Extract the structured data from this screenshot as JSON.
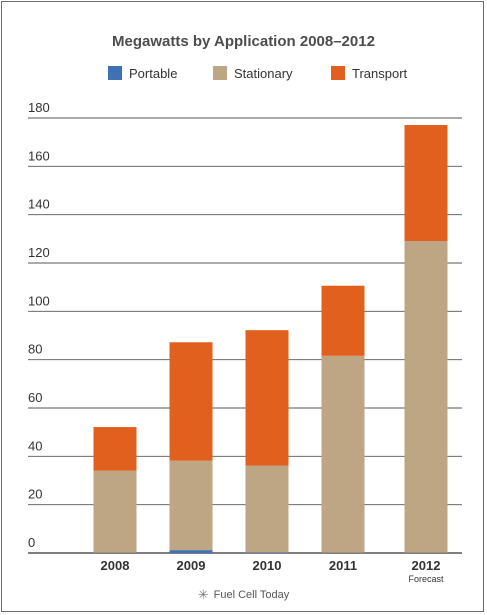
{
  "chart_data": {
    "type": "bar",
    "stacked": true,
    "title": "Megawatts by Application 2008–2012",
    "categories": [
      "2008",
      "2009",
      "2010",
      "2011",
      "2012"
    ],
    "category_sublabels": [
      "",
      "",
      "",
      "",
      "Forecast"
    ],
    "series": [
      {
        "name": "Portable",
        "color": "#3f72b5",
        "values": [
          0.1,
          1.2,
          0.2,
          0.1,
          0.1
        ]
      },
      {
        "name": "Stationary",
        "color": "#bea583",
        "values": [
          34,
          37,
          36,
          81.5,
          129
        ]
      },
      {
        "name": "Transport",
        "color": "#e2601d",
        "values": [
          18,
          49,
          56,
          29,
          48
        ]
      }
    ],
    "yticks": [
      0,
      20,
      40,
      60,
      80,
      100,
      120,
      140,
      160,
      180
    ],
    "ylim": [
      0,
      180
    ],
    "grid": true,
    "legend_position": "top"
  },
  "footer": {
    "icon": "sunburst-icon",
    "text": "Fuel Cell Today"
  }
}
